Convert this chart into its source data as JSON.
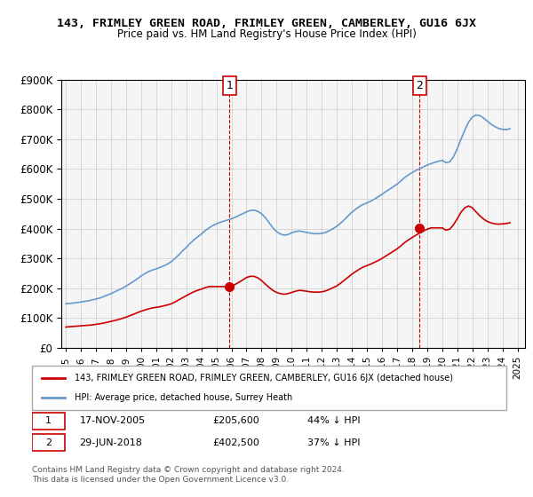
{
  "title": "143, FRIMLEY GREEN ROAD, FRIMLEY GREEN, CAMBERLEY, GU16 6JX",
  "subtitle": "Price paid vs. HM Land Registry's House Price Index (HPI)",
  "ylabel_ticks": [
    "£0",
    "£100K",
    "£200K",
    "£300K",
    "£400K",
    "£500K",
    "£600K",
    "£700K",
    "£800K",
    "£900K"
  ],
  "ytick_values": [
    0,
    100000,
    200000,
    300000,
    400000,
    500000,
    600000,
    700000,
    800000,
    900000
  ],
  "ylim": [
    0,
    900000
  ],
  "xlim_start": 1995.0,
  "xlim_end": 2025.5,
  "legend_line1": "143, FRIMLEY GREEN ROAD, FRIMLEY GREEN, CAMBERLEY, GU16 6JX (detached house)",
  "legend_line2": "HPI: Average price, detached house, Surrey Heath",
  "sale1_label": "1",
  "sale1_date": "17-NOV-2005",
  "sale1_price": "£205,600",
  "sale1_hpi": "44% ↓ HPI",
  "sale2_label": "2",
  "sale2_date": "29-JUN-2018",
  "sale2_price": "£402,500",
  "sale2_hpi": "37% ↓ HPI",
  "footer": "Contains HM Land Registry data © Crown copyright and database right 2024.\nThis data is licensed under the Open Government Licence v3.0.",
  "red_color": "#cc0000",
  "blue_color": "#6699cc",
  "marker1_x": 2005.88,
  "marker1_y": 205600,
  "marker2_x": 2018.5,
  "marker2_y": 402500,
  "hpi_x": [
    1995,
    1995.25,
    1995.5,
    1995.75,
    1996,
    1996.25,
    1996.5,
    1996.75,
    1997,
    1997.25,
    1997.5,
    1997.75,
    1998,
    1998.25,
    1998.5,
    1998.75,
    1999,
    1999.25,
    1999.5,
    1999.75,
    2000,
    2000.25,
    2000.5,
    2000.75,
    2001,
    2001.25,
    2001.5,
    2001.75,
    2002,
    2002.25,
    2002.5,
    2002.75,
    2003,
    2003.25,
    2003.5,
    2003.75,
    2004,
    2004.25,
    2004.5,
    2004.75,
    2005,
    2005.25,
    2005.5,
    2005.75,
    2006,
    2006.25,
    2006.5,
    2006.75,
    2007,
    2007.25,
    2007.5,
    2007.75,
    2008,
    2008.25,
    2008.5,
    2008.75,
    2009,
    2009.25,
    2009.5,
    2009.75,
    2010,
    2010.25,
    2010.5,
    2010.75,
    2011,
    2011.25,
    2011.5,
    2011.75,
    2012,
    2012.25,
    2012.5,
    2012.75,
    2013,
    2013.25,
    2013.5,
    2013.75,
    2014,
    2014.25,
    2014.5,
    2014.75,
    2015,
    2015.25,
    2015.5,
    2015.75,
    2016,
    2016.25,
    2016.5,
    2016.75,
    2017,
    2017.25,
    2017.5,
    2017.75,
    2018,
    2018.25,
    2018.5,
    2018.75,
    2019,
    2019.25,
    2019.5,
    2019.75,
    2020,
    2020.25,
    2020.5,
    2020.75,
    2021,
    2021.25,
    2021.5,
    2021.75,
    2022,
    2022.25,
    2022.5,
    2022.75,
    2023,
    2023.25,
    2023.5,
    2023.75,
    2024,
    2024.25,
    2024.5
  ],
  "hpi_y": [
    148000,
    149000,
    150500,
    152000,
    154000,
    156000,
    158000,
    161000,
    164000,
    167000,
    172000,
    177000,
    182000,
    188000,
    194000,
    200000,
    207000,
    215000,
    223000,
    232000,
    241000,
    249000,
    256000,
    261000,
    265000,
    270000,
    275000,
    281000,
    289000,
    300000,
    312000,
    325000,
    337000,
    350000,
    362000,
    372000,
    382000,
    393000,
    402000,
    410000,
    416000,
    421000,
    425000,
    429000,
    433000,
    438000,
    444000,
    450000,
    456000,
    461000,
    462000,
    458000,
    450000,
    437000,
    420000,
    403000,
    390000,
    382000,
    378000,
    380000,
    386000,
    390000,
    392000,
    390000,
    387000,
    385000,
    383000,
    383000,
    384000,
    387000,
    393000,
    400000,
    408000,
    418000,
    430000,
    443000,
    455000,
    465000,
    474000,
    481000,
    486000,
    492000,
    499000,
    507000,
    515000,
    524000,
    532000,
    540000,
    549000,
    560000,
    571000,
    580000,
    588000,
    595000,
    601000,
    607000,
    613000,
    618000,
    622000,
    626000,
    629000,
    621000,
    624000,
    641000,
    668000,
    700000,
    730000,
    757000,
    774000,
    781000,
    779000,
    771000,
    760000,
    750000,
    742000,
    736000,
    733000,
    732000,
    735000
  ],
  "red_x": [
    1995,
    1995.25,
    1995.5,
    1995.75,
    1996,
    1996.25,
    1996.5,
    1996.75,
    1997,
    1997.25,
    1997.5,
    1997.75,
    1998,
    1998.25,
    1998.5,
    1998.75,
    1999,
    1999.25,
    1999.5,
    1999.75,
    2000,
    2000.25,
    2000.5,
    2000.75,
    2001,
    2001.25,
    2001.5,
    2001.75,
    2002,
    2002.25,
    2002.5,
    2002.75,
    2003,
    2003.25,
    2003.5,
    2003.75,
    2004,
    2004.25,
    2004.5,
    2004.75,
    2005,
    2005.25,
    2005.5,
    2005.75,
    2006,
    2006.25,
    2006.5,
    2006.75,
    2007,
    2007.25,
    2007.5,
    2007.75,
    2008,
    2008.25,
    2008.5,
    2008.75,
    2009,
    2009.25,
    2009.5,
    2009.75,
    2010,
    2010.25,
    2010.5,
    2010.75,
    2011,
    2011.25,
    2011.5,
    2011.75,
    2012,
    2012.25,
    2012.5,
    2012.75,
    2013,
    2013.25,
    2013.5,
    2013.75,
    2014,
    2014.25,
    2014.5,
    2014.75,
    2015,
    2015.25,
    2015.5,
    2015.75,
    2016,
    2016.25,
    2016.5,
    2016.75,
    2017,
    2017.25,
    2017.5,
    2017.75,
    2018,
    2018.25,
    2018.5,
    2018.75,
    2019,
    2019.25,
    2019.5,
    2019.75,
    2020,
    2020.25,
    2020.5,
    2020.75,
    2021,
    2021.25,
    2021.5,
    2021.75,
    2022,
    2022.25,
    2022.5,
    2022.75,
    2023,
    2023.25,
    2023.5,
    2023.75,
    2024,
    2024.25,
    2024.5
  ],
  "red_y": [
    70000,
    71000,
    72000,
    73000,
    74000,
    75000,
    76000,
    77000,
    79000,
    81000,
    83000,
    86000,
    89000,
    92000,
    95000,
    99000,
    103000,
    108000,
    113000,
    118000,
    123000,
    127000,
    131000,
    134000,
    136000,
    138000,
    141000,
    144000,
    148000,
    154000,
    161000,
    168000,
    175000,
    182000,
    188000,
    193000,
    197000,
    202000,
    205600,
    205600,
    205600,
    205600,
    205600,
    205600,
    205600,
    213000,
    220000,
    228000,
    236000,
    240000,
    240000,
    235000,
    226000,
    214000,
    203000,
    193000,
    186000,
    182000,
    180000,
    182000,
    186000,
    190000,
    193000,
    192000,
    190000,
    188000,
    187000,
    187000,
    188000,
    191000,
    196000,
    202000,
    208000,
    217000,
    227000,
    237000,
    247000,
    256000,
    264000,
    271000,
    276000,
    281000,
    287000,
    293000,
    300000,
    308000,
    316000,
    324000,
    332000,
    342000,
    353000,
    362000,
    370000,
    378000,
    385000,
    392000,
    398000,
    402500,
    402500,
    402500,
    402500,
    395000,
    398000,
    413000,
    433000,
    455000,
    470000,
    476000,
    470000,
    456000,
    443000,
    432000,
    424000,
    419000,
    416000,
    415000,
    416000,
    417000,
    420000
  ],
  "xtick_years": [
    1995,
    1996,
    1997,
    1998,
    1999,
    2000,
    2001,
    2002,
    2003,
    2004,
    2005,
    2006,
    2007,
    2008,
    2009,
    2010,
    2011,
    2012,
    2013,
    2014,
    2015,
    2016,
    2017,
    2018,
    2019,
    2020,
    2021,
    2022,
    2023,
    2024,
    2025
  ],
  "vline1_x": 2005.88,
  "vline2_x": 2018.5,
  "background_color": "#f5f5f5"
}
